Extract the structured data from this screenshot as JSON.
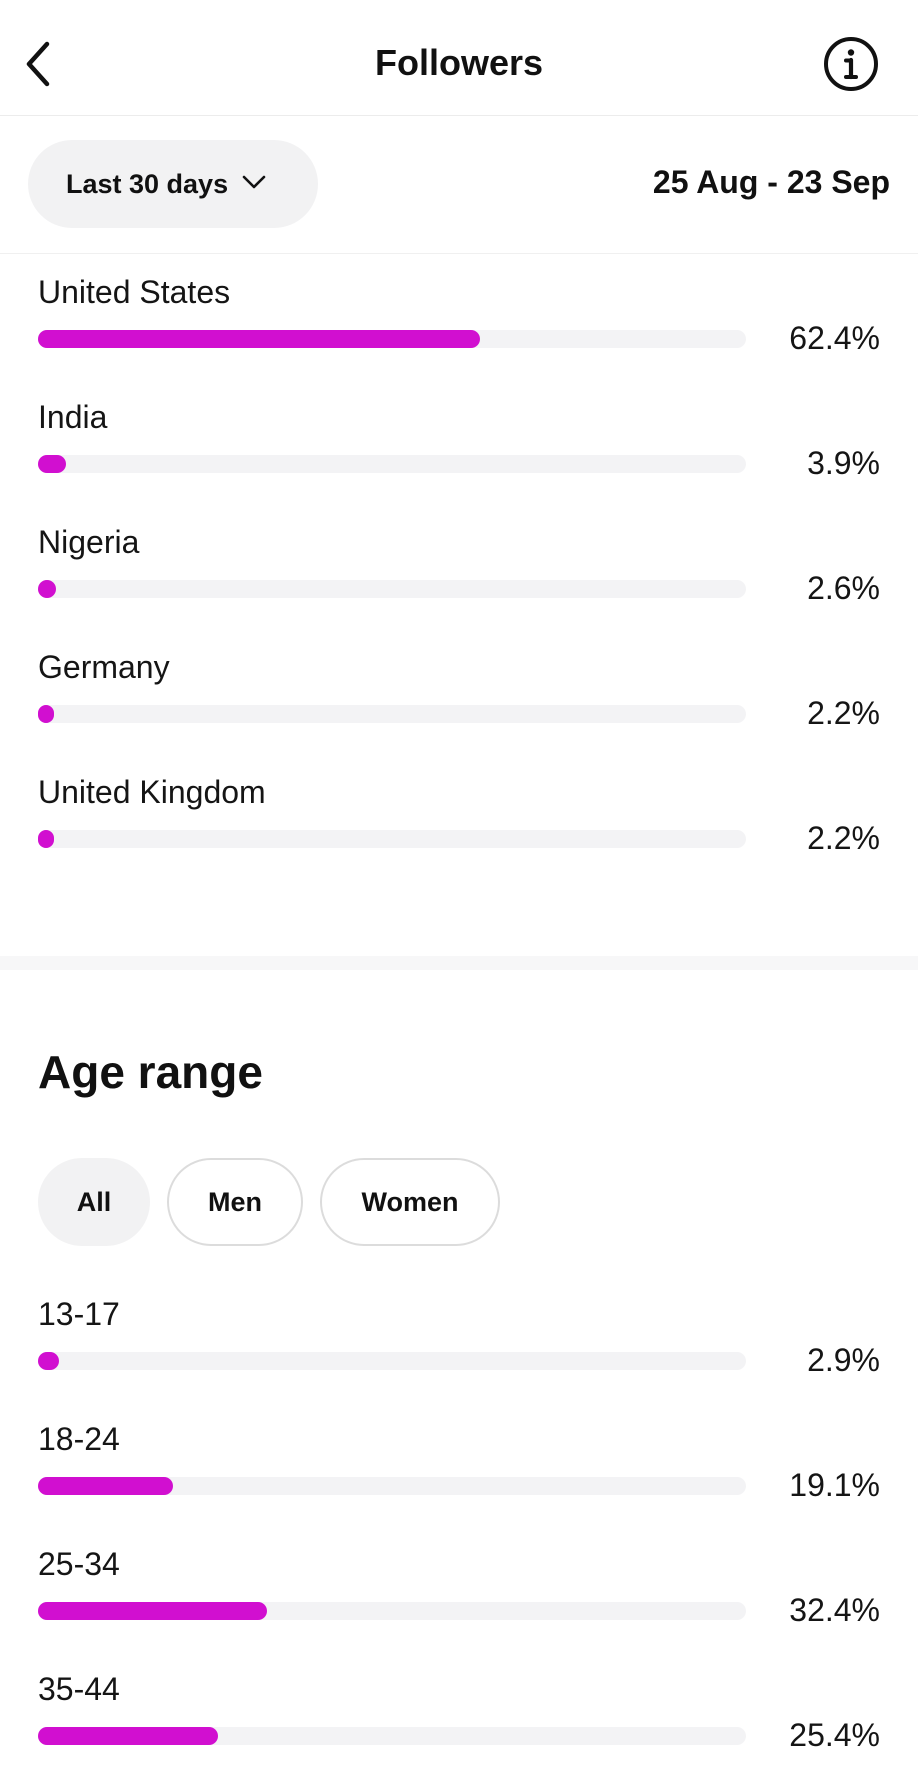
{
  "header": {
    "title": "Followers",
    "back_icon": "chevron-left-icon",
    "info_icon": "info-icon"
  },
  "filter": {
    "range_label": "Last 30 days",
    "range_icon": "chevron-down-icon",
    "date_range": "25 Aug - 23 Sep"
  },
  "colors": {
    "accent": "#d10fd0",
    "track": "#f3f3f5"
  },
  "countries": [
    {
      "label": "United States",
      "percent_text": "62.4%",
      "value": 62.4
    },
    {
      "label": "India",
      "percent_text": "3.9%",
      "value": 3.9
    },
    {
      "label": "Nigeria",
      "percent_text": "2.6%",
      "value": 2.6
    },
    {
      "label": "Germany",
      "percent_text": "2.2%",
      "value": 2.2
    },
    {
      "label": "United Kingdom",
      "percent_text": "2.2%",
      "value": 2.2
    }
  ],
  "age_range": {
    "title": "Age range",
    "filters": [
      {
        "label": "All",
        "selected": true
      },
      {
        "label": "Men",
        "selected": false
      },
      {
        "label": "Women",
        "selected": false
      }
    ],
    "bars": [
      {
        "label": "13-17",
        "percent_text": "2.9%",
        "value": 2.9
      },
      {
        "label": "18-24",
        "percent_text": "19.1%",
        "value": 19.1
      },
      {
        "label": "25-34",
        "percent_text": "32.4%",
        "value": 32.4
      },
      {
        "label": "35-44",
        "percent_text": "25.4%",
        "value": 25.4
      }
    ]
  }
}
